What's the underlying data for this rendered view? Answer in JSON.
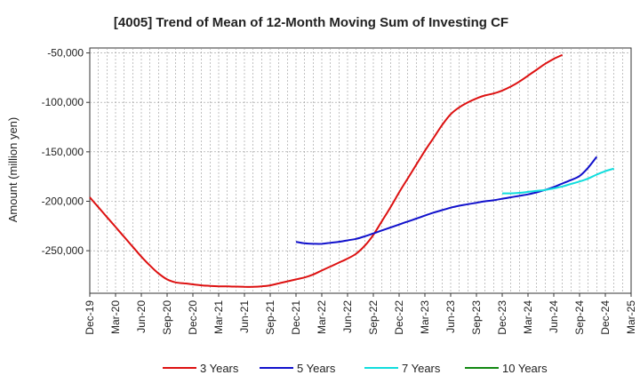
{
  "chart_data": {
    "type": "line",
    "title": "[4005]  Trend of Mean of 12-Month Moving Sum of Investing CF",
    "xlabel": "",
    "ylabel": "Amount (million yen)",
    "ylim": [
      -293000,
      -45000
    ],
    "y_ticks": [
      -50000,
      -100000,
      -150000,
      -200000,
      -250000
    ],
    "y_tick_labels": [
      "-50,000",
      "-100,000",
      "-150,000",
      "-200,000",
      "-250,000"
    ],
    "x_tick_labels": [
      "Dec-19",
      "Mar-20",
      "Jun-20",
      "Sep-20",
      "Dec-20",
      "Mar-21",
      "Jun-21",
      "Sep-21",
      "Dec-21",
      "Mar-22",
      "Jun-22",
      "Sep-22",
      "Dec-22",
      "Mar-23",
      "Jun-23",
      "Sep-23",
      "Dec-23",
      "Mar-24",
      "Jun-24",
      "Sep-24",
      "Dec-24",
      "Mar-25"
    ],
    "grid": true,
    "legend_position": "bottom",
    "series": [
      {
        "name": "3 Years",
        "color": "#dd1111",
        "start": "Dec-19",
        "values": [
          -196000,
          -206000,
          -216000,
          -226000,
          -236000,
          -246000,
          -256000,
          -265000,
          -273000,
          -279000,
          -282000,
          -283000,
          -284000,
          -285000,
          -285500,
          -286000,
          -286000,
          -286300,
          -286500,
          -286500,
          -286000,
          -285000,
          -283000,
          -281000,
          -279000,
          -277000,
          -274000,
          -270000,
          -266000,
          -262000,
          -258000,
          -253000,
          -245000,
          -234000,
          -220000,
          -206000,
          -191000,
          -177000,
          -163000,
          -149000,
          -136000,
          -123000,
          -112000,
          -105000,
          -100000,
          -96000,
          -93000,
          -91000,
          -88000,
          -84000,
          -79000,
          -73000,
          -67000,
          -61000,
          -56000,
          -52000
        ]
      },
      {
        "name": "5 Years",
        "color": "#1111cc",
        "start": "Dec-21",
        "values": [
          -241000,
          -242500,
          -243000,
          -243000,
          -242000,
          -241000,
          -239500,
          -238000,
          -235500,
          -232500,
          -229500,
          -226500,
          -223500,
          -220500,
          -217500,
          -214500,
          -211500,
          -209000,
          -206500,
          -204500,
          -203000,
          -201500,
          -200000,
          -199000,
          -197500,
          -196000,
          -194500,
          -193000,
          -191000,
          -188500,
          -185500,
          -182000,
          -178500,
          -174500,
          -166000,
          -155000
        ]
      },
      {
        "name": "7 Years",
        "color": "#11dddd",
        "start": "Dec-23",
        "values": [
          -192000,
          -192000,
          -191500,
          -190500,
          -189500,
          -188500,
          -187000,
          -185000,
          -182500,
          -180000,
          -177000,
          -173000,
          -169500,
          -167000
        ]
      },
      {
        "name": "10 Years",
        "color": "#118811",
        "start": "Dec-19",
        "values": []
      }
    ]
  }
}
